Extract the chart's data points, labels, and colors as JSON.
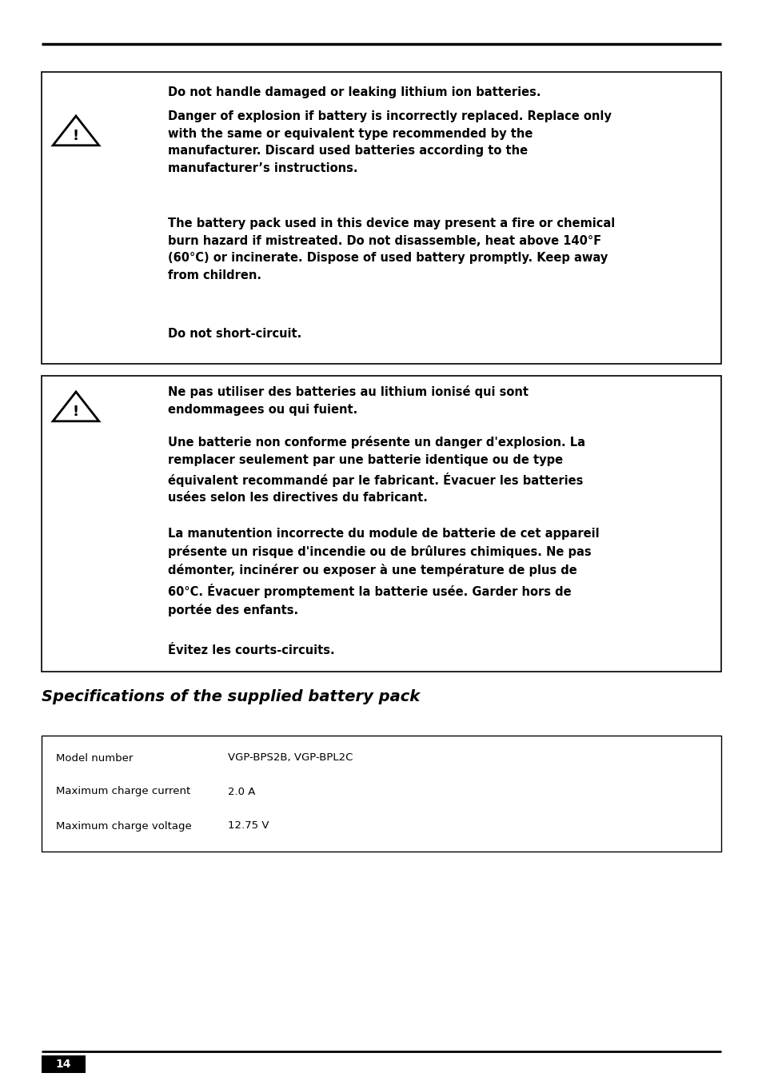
{
  "bg_color": "#ffffff",
  "text_color": "#000000",
  "page_number": "14",
  "section_title": "Specifications of the supplied battery pack",
  "box1_lines": [
    "Do not handle damaged or leaking lithium ion batteries.",
    "Danger of explosion if battery is incorrectly replaced. Replace only\nwith the same or equivalent type recommended by the\nmanufacturer. Discard used batteries according to the\nmanufacturer’s instructions.",
    "The battery pack used in this device may present a fire or chemical\nburn hazard if mistreated. Do not disassemble, heat above 140°F\n(60°C) or incinerate. Dispose of used battery promptly. Keep away\nfrom children.",
    "Do not short-circuit."
  ],
  "box2_lines": [
    "Ne pas utiliser des batteries au lithium ionisé qui sont\nendommagees ou qui fuient.",
    "Une batterie non conforme présente un danger d'explosion. La\nremplacer seulement par une batterie identique ou de type\néquivalent recommandé par le fabricant. Évacuer les batteries\nusées selon les directives du fabricant.",
    "La manutention incorrecte du module de batterie de cet appareil\nprésente un risque d'incendie ou de brûlures chimiques. Ne pas\ndémonter, incinérer ou exposer à une température de plus de\n60°C. Évacuer promptement la batterie usée. Garder hors de\nportée des enfants.",
    "Évitez les courts-circuits."
  ],
  "spec_rows": [
    {
      "label": "Model number",
      "value": "VGP-BPS2B, VGP-BPL2C"
    },
    {
      "label": "Maximum charge current",
      "value": "2.0 A"
    },
    {
      "label": "Maximum charge voltage",
      "value": "12.75 V"
    }
  ],
  "font_size_body": 10.5,
  "font_size_title": 14,
  "font_size_spec": 9.5,
  "font_size_page": 10
}
